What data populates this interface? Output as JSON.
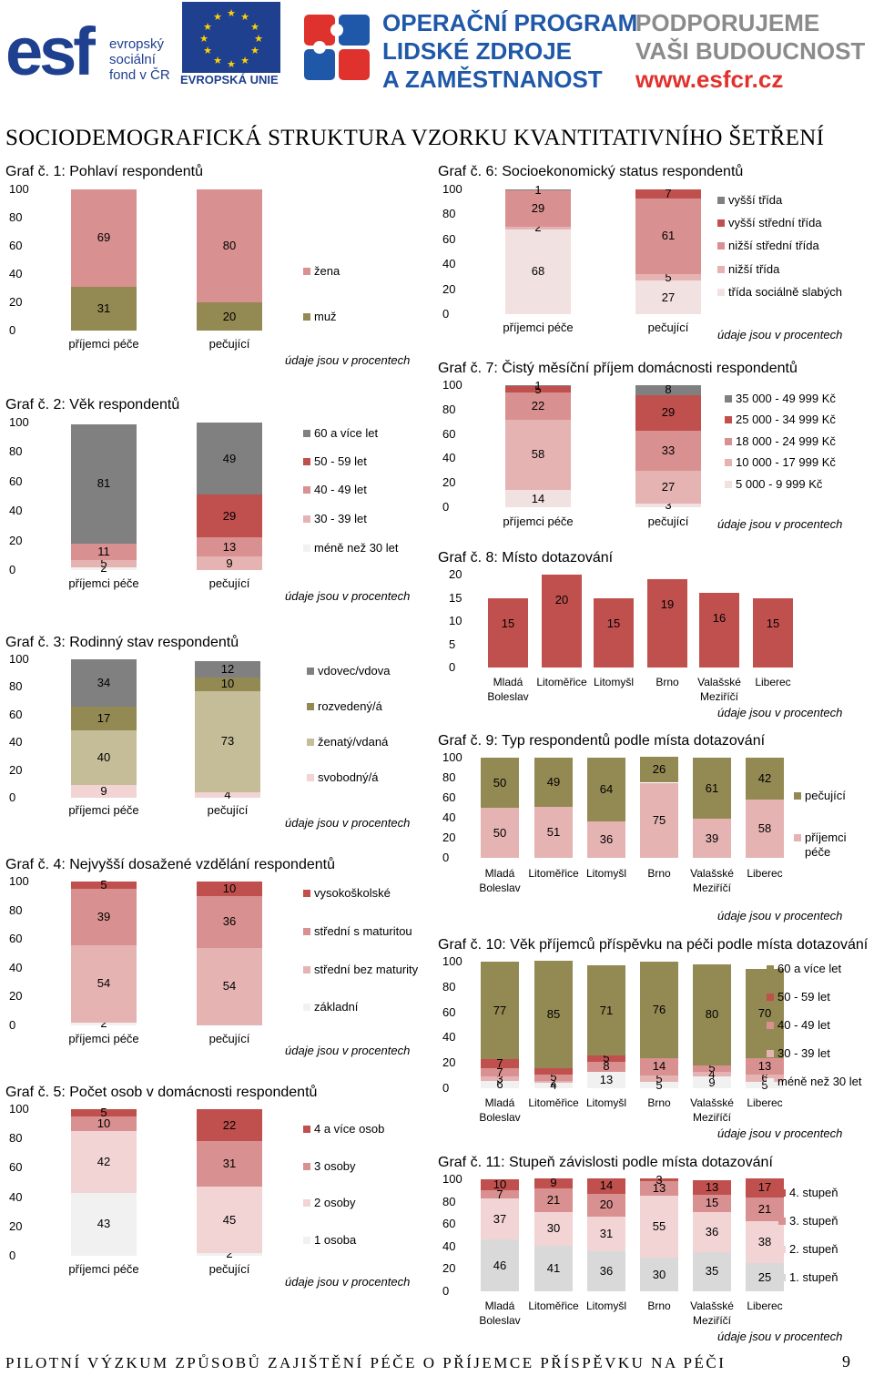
{
  "header": {
    "esf_text": [
      "evropský",
      "sociální",
      "fond v ČR"
    ],
    "eu_text": "EVROPSKÁ UNIE",
    "op_text": [
      "OPERAČNÍ PROGRAM",
      "LIDSKÉ ZDROJE",
      "A ZAMĚSTNANOST"
    ],
    "support_text": [
      "PODPORUJEME",
      "VAŠI BUDOUCNOST"
    ],
    "support_url": "www.esfcr.cz"
  },
  "page_title": "SOCIODEMOGRAFICKÁ STRUKTURA VZORKU KVANTITATIVNÍHO ŠETŘENÍ",
  "footer_text": "PILOTNÍ VÝZKUM ZPŮSOBŮ ZAJIŠTĚNÍ PÉČE O PŘÍJEMCE PŘÍSPĚVKU NA PÉČI",
  "page_number": "9",
  "colors": {
    "lightest": "#f1f1f1",
    "pale_pink": "#f2d4d4",
    "light_pink": "#e6b3b3",
    "pink": "#d99090",
    "rose": "#c0504d",
    "dark_red": "#b4404a",
    "olive": "#938953",
    "khaki": "#c4bd97",
    "gray": "#808080"
  },
  "chart_data": [
    {
      "id": "g1",
      "type": "stacked_bar",
      "title_prefix": "Graf č. 1",
      "title_rest": ": Pohlaví respondentů",
      "categories": [
        "příjemci péče",
        "pečující"
      ],
      "yticks": [
        "100",
        "80",
        "60",
        "40",
        "20",
        "0"
      ],
      "ylim": [
        0,
        100
      ],
      "series": [
        {
          "name": "muž",
          "values": [
            31,
            20
          ],
          "labels": [
            "31",
            "20"
          ],
          "color": "#938953"
        },
        {
          "name": "žena",
          "values": [
            69,
            80
          ],
          "labels": [
            "69",
            "80"
          ],
          "color": "#d99090"
        }
      ],
      "note": "údaje jsou v procentech"
    },
    {
      "id": "g2",
      "type": "stacked_bar",
      "title_prefix": "Graf č. 2",
      "title_rest": ": Věk respondentů",
      "categories": [
        "příjemci péče",
        "pečující"
      ],
      "yticks": [
        "100",
        "80",
        "60",
        "40",
        "20",
        "0"
      ],
      "ylim": [
        0,
        100
      ],
      "series": [
        {
          "name": "méně než 30 let",
          "values": [
            2,
            0
          ],
          "labels": [
            "2",
            ""
          ],
          "color": "#f1f1f1"
        },
        {
          "name": "30 - 39 let",
          "values": [
            5,
            9
          ],
          "labels": [
            "5",
            "9"
          ],
          "color": "#e6b3b3"
        },
        {
          "name": "40 - 49 let",
          "values": [
            11,
            13
          ],
          "labels": [
            "11",
            "13"
          ],
          "color": "#d99090"
        },
        {
          "name": "50 - 59 let",
          "values": [
            0,
            29
          ],
          "labels": [
            "",
            "29"
          ],
          "color": "#c0504d"
        },
        {
          "name": "60 a více let",
          "values": [
            81,
            49
          ],
          "labels": [
            "81",
            "49"
          ],
          "color": "#808080"
        }
      ],
      "note": "údaje jsou v procentech"
    },
    {
      "id": "g3",
      "type": "stacked_bar",
      "title_prefix": "Graf č. 3",
      "title_rest": ": Rodinný stav respondentů",
      "categories": [
        "příjemci péče",
        "pečující"
      ],
      "yticks": [
        "100",
        "80",
        "60",
        "40",
        "20",
        "0"
      ],
      "ylim": [
        0,
        100
      ],
      "series": [
        {
          "name": "svobodný/á",
          "values": [
            9,
            4
          ],
          "labels": [
            "9",
            "4"
          ],
          "color": "#f2d4d4"
        },
        {
          "name": "ženatý/vdaná",
          "values": [
            40,
            73
          ],
          "labels": [
            "40",
            "73"
          ],
          "color": "#c4bd97"
        },
        {
          "name": "rozvedený/á",
          "values": [
            17,
            10
          ],
          "labels": [
            "17",
            "10"
          ],
          "color": "#938953"
        },
        {
          "name": "vdovec/vdova",
          "values": [
            34,
            12
          ],
          "labels": [
            "34",
            "12"
          ],
          "color": "#808080"
        }
      ],
      "note": "údaje jsou v procentech"
    },
    {
      "id": "g4",
      "type": "stacked_bar",
      "title_prefix": "Graf č. 4",
      "title_rest": ": Nejvyšší dosažené vzdělání respondentů",
      "categories": [
        "příjemci péče",
        "pečující"
      ],
      "yticks": [
        "100",
        "80",
        "60",
        "40",
        "20",
        "0"
      ],
      "ylim": [
        0,
        100
      ],
      "series": [
        {
          "name": "základní",
          "values": [
            2,
            0
          ],
          "labels": [
            "2",
            ""
          ],
          "color": "#f1f1f1"
        },
        {
          "name": "střední bez maturity",
          "values": [
            54,
            54
          ],
          "labels": [
            "54",
            "54"
          ],
          "color": "#e6b3b3"
        },
        {
          "name": "střední s maturitou",
          "values": [
            39,
            36
          ],
          "labels": [
            "39",
            "36"
          ],
          "color": "#d99090"
        },
        {
          "name": "vysokoškolské",
          "values": [
            5,
            10
          ],
          "labels": [
            "5",
            "10"
          ],
          "color": "#c0504d"
        }
      ],
      "note": "údaje jsou v procentech"
    },
    {
      "id": "g5",
      "type": "stacked_bar",
      "title_prefix": "Graf č. 5",
      "title_rest": ": Počet osob v domácnosti respondentů",
      "categories": [
        "příjemci péče",
        "pečující"
      ],
      "yticks": [
        "100",
        "80",
        "60",
        "40",
        "20",
        "0"
      ],
      "ylim": [
        0,
        100
      ],
      "series": [
        {
          "name": "1 osoba",
          "values": [
            43,
            2
          ],
          "labels": [
            "43",
            "2"
          ],
          "color": "#f1f1f1"
        },
        {
          "name": "2 osoby",
          "values": [
            42,
            45
          ],
          "labels": [
            "42",
            "45"
          ],
          "color": "#f2d4d4"
        },
        {
          "name": "3 osoby",
          "values": [
            10,
            31
          ],
          "labels": [
            "10",
            "31"
          ],
          "color": "#d99090"
        },
        {
          "name": "4 a více osob",
          "values": [
            5,
            22
          ],
          "labels": [
            "5",
            "22"
          ],
          "color": "#c0504d"
        }
      ],
      "note": "údaje jsou v procentech"
    },
    {
      "id": "g6",
      "type": "stacked_bar",
      "title_prefix": "Graf č. 6",
      "title_rest": ": Socioekonomický status respondentů",
      "categories": [
        "příjemci péče",
        "pečující"
      ],
      "yticks": [
        "100",
        "80",
        "60",
        "40",
        "20",
        "0"
      ],
      "ylim": [
        0,
        100
      ],
      "series": [
        {
          "name": "třída sociálně slabých",
          "values": [
            68,
            27
          ],
          "labels": [
            "68",
            "27"
          ],
          "color": "#f2e1e1"
        },
        {
          "name": "nižší třída",
          "values": [
            2,
            5
          ],
          "labels": [
            "2",
            "5"
          ],
          "color": "#e6b3b3"
        },
        {
          "name": "nižší střední třída",
          "values": [
            29,
            61
          ],
          "labels": [
            "29",
            "61"
          ],
          "color": "#d99090"
        },
        {
          "name": "vyšší střední třída",
          "values": [
            0,
            7
          ],
          "labels": [
            "",
            "7"
          ],
          "color": "#c0504d"
        },
        {
          "name": "vyšší třída",
          "values": [
            1,
            0
          ],
          "labels": [
            "1",
            ""
          ],
          "color": "#808080"
        }
      ],
      "note": "údaje jsou v procentech"
    },
    {
      "id": "g7",
      "type": "stacked_bar",
      "title_prefix": "Graf č. 7",
      "title_rest": ": Čistý měsíční příjem domácnosti respondentů",
      "categories": [
        "příjemci péče",
        "pečující"
      ],
      "yticks": [
        "100",
        "80",
        "60",
        "40",
        "20",
        "0"
      ],
      "ylim": [
        0,
        100
      ],
      "series": [
        {
          "name": "5 000 - 9 999 Kč",
          "values": [
            14,
            3
          ],
          "labels": [
            "14",
            "3"
          ],
          "color": "#f2e1e1"
        },
        {
          "name": "10 000 - 17 999 Kč",
          "values": [
            58,
            27
          ],
          "labels": [
            "58",
            "27"
          ],
          "color": "#e6b3b3"
        },
        {
          "name": "18 000 - 24 999 Kč",
          "values": [
            22,
            33
          ],
          "labels": [
            "22",
            "33"
          ],
          "color": "#d99090"
        },
        {
          "name": "25 000 - 34 999 Kč",
          "values": [
            5,
            29
          ],
          "labels": [
            "5",
            "29"
          ],
          "color": "#c0504d"
        },
        {
          "name": "35 000 - 49 999 Kč",
          "values": [
            1,
            8
          ],
          "labels": [
            "1",
            "8"
          ],
          "color": "#808080"
        }
      ],
      "note": "údaje jsou v procentech"
    },
    {
      "id": "g8",
      "type": "bar",
      "title_prefix": "Graf č. 8",
      "title_rest": ": Místo dotazování",
      "categories": [
        "Mladá Boleslav",
        "Litoměřice",
        "Litomyšl",
        "Brno",
        "Valašské Meziříčí",
        "Liberec"
      ],
      "yticks": [
        "20",
        "15",
        "10",
        "5",
        "0"
      ],
      "ylim": [
        0,
        20
      ],
      "values": [
        15,
        20,
        15,
        19,
        16,
        15
      ],
      "labels": [
        "15",
        "20",
        "15",
        "19",
        "16",
        "15"
      ],
      "color": "#c0504d",
      "note": "údaje jsou v procentech"
    },
    {
      "id": "g9",
      "type": "stacked_bar",
      "title_prefix": "Graf č. 9",
      "title_rest": ": Typ respondentů podle místa dotazování",
      "categories": [
        "Mladá Boleslav",
        "Litoměřice",
        "Litomyšl",
        "Brno",
        "Valašské Meziříčí",
        "Liberec"
      ],
      "yticks": [
        "100",
        "80",
        "60",
        "40",
        "20",
        "0"
      ],
      "ylim": [
        0,
        100
      ],
      "series": [
        {
          "name": "příjemci péče",
          "values": [
            50,
            51,
            36,
            75,
            39,
            58
          ],
          "labels": [
            "50",
            "51",
            "36",
            "75",
            "39",
            "58"
          ],
          "color": "#e6b3b3"
        },
        {
          "name": "pečující",
          "values": [
            50,
            49,
            64,
            26,
            61,
            42
          ],
          "labels": [
            "50",
            "49",
            "64",
            "26",
            "61",
            "42"
          ],
          "color": "#938953"
        }
      ],
      "note": "údaje jsou v procentech"
    },
    {
      "id": "g10",
      "type": "stacked_bar",
      "title_prefix": "Graf č. 10",
      "title_rest": ": Věk příjemců příspěvku na péči podle místa dotazování",
      "categories": [
        "Mladá Boleslav",
        "Litoměřice",
        "Litomyšl",
        "Brno",
        "Valašské Meziříčí",
        "Liberec"
      ],
      "yticks": [
        "100",
        "80",
        "60",
        "40",
        "20",
        "0"
      ],
      "ylim": [
        0,
        100
      ],
      "series": [
        {
          "name": "méně než 30 let",
          "values": [
            6,
            4,
            13,
            5,
            9,
            5
          ],
          "labels": [
            "6",
            "4",
            "13",
            "5",
            "9",
            "5"
          ],
          "color": "#f1f1f1"
        },
        {
          "name": "30 - 39 let",
          "values": [
            3,
            2,
            0,
            5,
            4,
            6
          ],
          "labels": [
            "3",
            "2",
            "",
            "5",
            "4",
            "6"
          ],
          "color": "#e6b3b3"
        },
        {
          "name": "40 - 49 let",
          "values": [
            7,
            5,
            8,
            14,
            5,
            13
          ],
          "labels": [
            "7",
            "5",
            "8",
            "14",
            "5",
            "13"
          ],
          "color": "#d99090"
        },
        {
          "name": "50 - 59 let",
          "values": [
            7,
            5,
            5,
            0,
            0,
            0
          ],
          "labels": [
            "7",
            "",
            "5",
            "",
            "",
            ""
          ],
          "color": "#c0504d"
        },
        {
          "name": "60 a více let",
          "values": [
            77,
            85,
            71,
            76,
            80,
            70
          ],
          "labels": [
            "77",
            "85",
            "71",
            "76",
            "80",
            "70"
          ],
          "color": "#938953"
        }
      ],
      "note": "údaje jsou v procentech"
    },
    {
      "id": "g11",
      "type": "stacked_bar",
      "title_prefix": "Graf č. 11",
      "title_rest": ": Stupeň závislosti podle místa dotazování",
      "categories": [
        "Mladá Boleslav",
        "Litoměřice",
        "Litomyšl",
        "Brno",
        "Valašské Meziříčí",
        "Liberec"
      ],
      "yticks": [
        "100",
        "80",
        "60",
        "40",
        "20",
        "0"
      ],
      "ylim": [
        0,
        100
      ],
      "series": [
        {
          "name": "1. stupeň",
          "values": [
            46,
            41,
            36,
            30,
            35,
            25
          ],
          "labels": [
            "46",
            "41",
            "36",
            "30",
            "35",
            "25"
          ],
          "color": "#d9d9d9"
        },
        {
          "name": "2. stupeň",
          "values": [
            37,
            30,
            31,
            55,
            36,
            38
          ],
          "labels": [
            "37",
            "30",
            "31",
            "55",
            "36",
            "38"
          ],
          "color": "#f2d4d4"
        },
        {
          "name": "3. stupeň",
          "values": [
            7,
            21,
            20,
            13,
            15,
            21
          ],
          "labels": [
            "7",
            "21",
            "20",
            "13",
            "15",
            "21"
          ],
          "color": "#d99090"
        },
        {
          "name": "4. stupeň",
          "values": [
            10,
            9,
            14,
            3,
            13,
            17
          ],
          "labels": [
            "10",
            "9",
            "14",
            "3",
            "13",
            "17"
          ],
          "color": "#c0504d"
        }
      ],
      "note": "údaje jsou v procentech"
    }
  ]
}
